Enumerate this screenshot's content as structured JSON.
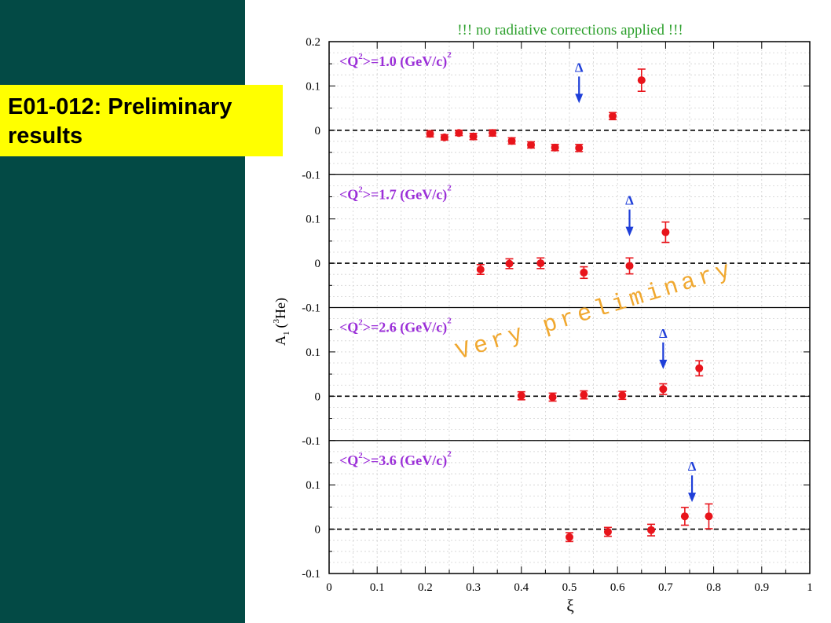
{
  "slide": {
    "title_lines": [
      "E01-012: Preliminary",
      "results"
    ]
  },
  "colors": {
    "sidebar": "#034a45",
    "title_box": "#ffff00",
    "panel_label": "#9b2fd8",
    "data": "#e8141b",
    "arrow": "#1f3fd9",
    "note": "#2ca02c",
    "watermark": "#f0a830"
  },
  "chart_data": {
    "type": "scatter",
    "note": "!!! no radiative corrections applied !!!",
    "watermark": "Very preliminary",
    "xlabel": "ξ",
    "ylabel_main": "A",
    "ylabel_sub": "1",
    "ylabel_rest": "He)",
    "ylabel_paren": "(",
    "ylabel_sup": "3",
    "xlim": [
      0,
      1
    ],
    "ylim": [
      -0.1,
      0.2
    ],
    "x_ticks": [
      0,
      0.1,
      0.2,
      0.3,
      0.4,
      0.5,
      0.6,
      0.7,
      0.8,
      0.9,
      1
    ],
    "x_tick_labels": [
      "0",
      "0.1",
      "0.2",
      "0.3",
      "0.4",
      "0.5",
      "0.6",
      "0.7",
      "0.8",
      "0.9",
      "1"
    ],
    "y_tick_labels": [
      "0.2",
      "0.1",
      "0",
      "-0.1"
    ],
    "grid": true,
    "zero_line": "dashed",
    "arrow_label": "Δ",
    "panels": [
      {
        "label_pre": "<Q",
        "label_sup": "2",
        "label_post": ">=1.0 (GeV/c)",
        "label_sup2": "2",
        "delta_x": 0.52,
        "points": [
          {
            "x": 0.21,
            "y": -0.008,
            "err": 0.007
          },
          {
            "x": 0.24,
            "y": -0.016,
            "err": 0.006
          },
          {
            "x": 0.27,
            "y": -0.006,
            "err": 0.006
          },
          {
            "x": 0.3,
            "y": -0.014,
            "err": 0.007
          },
          {
            "x": 0.34,
            "y": -0.006,
            "err": 0.007
          },
          {
            "x": 0.38,
            "y": -0.024,
            "err": 0.007
          },
          {
            "x": 0.42,
            "y": -0.033,
            "err": 0.007
          },
          {
            "x": 0.47,
            "y": -0.039,
            "err": 0.007
          },
          {
            "x": 0.52,
            "y": -0.04,
            "err": 0.008
          },
          {
            "x": 0.59,
            "y": 0.032,
            "err": 0.008
          },
          {
            "x": 0.65,
            "y": 0.113,
            "err": 0.025
          }
        ]
      },
      {
        "label_pre": "<Q",
        "label_sup": "2",
        "label_post": ">=1.7 (GeV/c)",
        "label_sup2": "2",
        "delta_x": 0.625,
        "points": [
          {
            "x": 0.315,
            "y": -0.014,
            "err": 0.011
          },
          {
            "x": 0.375,
            "y": -0.001,
            "err": 0.011
          },
          {
            "x": 0.44,
            "y": 0.0,
            "err": 0.012
          },
          {
            "x": 0.53,
            "y": -0.021,
            "err": 0.013
          },
          {
            "x": 0.625,
            "y": -0.006,
            "err": 0.018
          },
          {
            "x": 0.7,
            "y": 0.07,
            "err": 0.023
          }
        ]
      },
      {
        "label_pre": "<Q",
        "label_sup": "2",
        "label_post": ">=2.6 (GeV/c)",
        "label_sup2": "2",
        "delta_x": 0.695,
        "points": [
          {
            "x": 0.4,
            "y": 0.001,
            "err": 0.009
          },
          {
            "x": 0.465,
            "y": -0.002,
            "err": 0.009
          },
          {
            "x": 0.53,
            "y": 0.003,
            "err": 0.009
          },
          {
            "x": 0.61,
            "y": 0.002,
            "err": 0.009
          },
          {
            "x": 0.695,
            "y": 0.016,
            "err": 0.012
          },
          {
            "x": 0.77,
            "y": 0.063,
            "err": 0.017
          }
        ]
      },
      {
        "label_pre": "<Q",
        "label_sup": "2",
        "label_post": ">=3.6 (GeV/c)",
        "label_sup2": "2",
        "delta_x": 0.755,
        "points": [
          {
            "x": 0.5,
            "y": -0.018,
            "err": 0.01
          },
          {
            "x": 0.58,
            "y": -0.006,
            "err": 0.01
          },
          {
            "x": 0.67,
            "y": -0.002,
            "err": 0.013
          },
          {
            "x": 0.74,
            "y": 0.029,
            "err": 0.02
          },
          {
            "x": 0.79,
            "y": 0.029,
            "err": 0.028
          }
        ]
      }
    ]
  }
}
